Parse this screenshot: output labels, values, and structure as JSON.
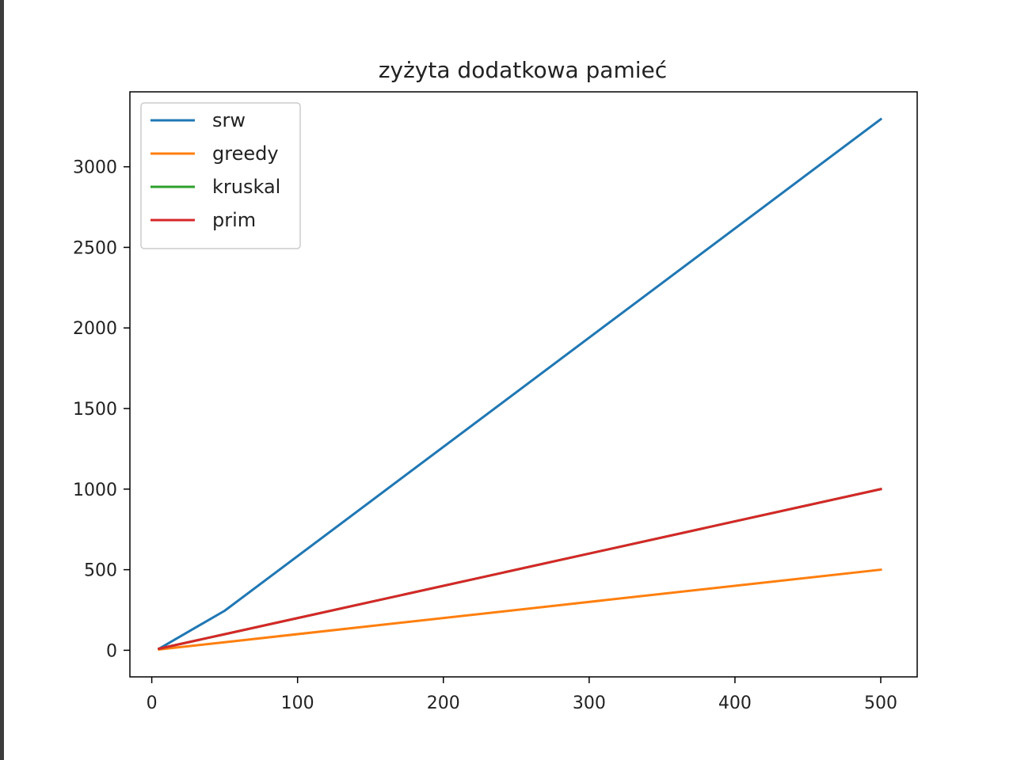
{
  "chart_data": {
    "type": "line",
    "title": "zyżyta dodatkowa pamieć",
    "xlabel": "",
    "ylabel": "",
    "xlim": [
      -15,
      525
    ],
    "ylim": [
      -165,
      3465
    ],
    "xticks": [
      0,
      100,
      200,
      300,
      400,
      500
    ],
    "yticks": [
      0,
      500,
      1000,
      1500,
      2000,
      2500,
      3000
    ],
    "grid": false,
    "legend_position": "upper left",
    "series": [
      {
        "name": "srw",
        "color": "#1f77b4",
        "x": [
          5,
          50,
          500
        ],
        "y": [
          10,
          245,
          3295
        ]
      },
      {
        "name": "greedy",
        "color": "#ff7f0e",
        "x": [
          5,
          50,
          500
        ],
        "y": [
          5,
          50,
          500
        ]
      },
      {
        "name": "kruskal",
        "color": "#2ca02c",
        "x": [
          5,
          50,
          500
        ],
        "y": [
          10,
          100,
          1000
        ]
      },
      {
        "name": "prim",
        "color": "#d62728",
        "x": [
          5,
          50,
          500
        ],
        "y": [
          10,
          100,
          1000
        ]
      }
    ]
  }
}
